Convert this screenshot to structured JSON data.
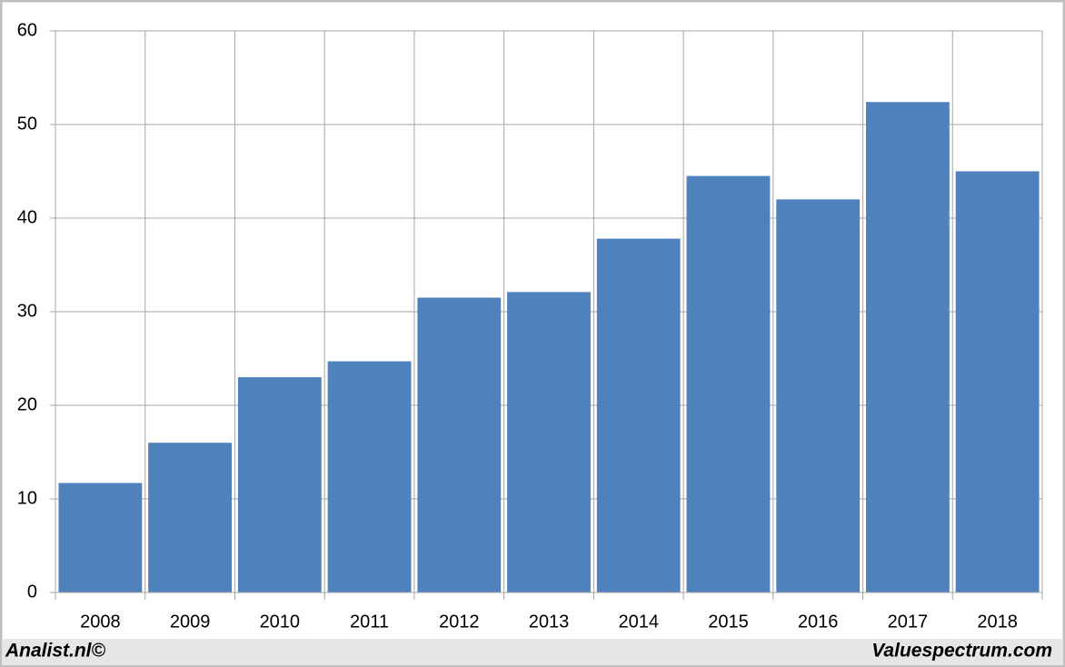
{
  "chart_data": {
    "type": "bar",
    "categories": [
      "2008",
      "2009",
      "2010",
      "2011",
      "2012",
      "2013",
      "2014",
      "2015",
      "2016",
      "2017",
      "2018"
    ],
    "values": [
      11.7,
      16.0,
      23.0,
      24.7,
      31.5,
      32.1,
      37.8,
      44.5,
      42.0,
      52.4,
      45.0
    ],
    "color": "#4f81bd",
    "ylim": [
      0,
      60
    ],
    "yticks": [
      0,
      10,
      20,
      30,
      40,
      50,
      60
    ],
    "grid": true,
    "footer_left": "Analist.nl©",
    "footer_right": "Valuespectrum.com"
  }
}
